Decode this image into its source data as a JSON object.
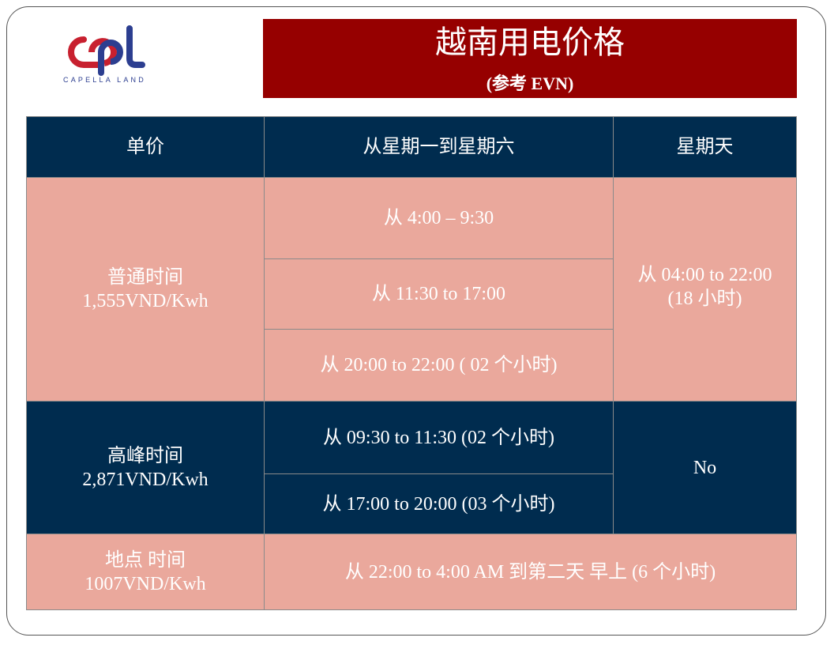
{
  "logo": {
    "text": "CAPELLA LAND",
    "colors": {
      "red": "#c8202f",
      "blue": "#2c3e90"
    }
  },
  "header": {
    "title": "越南用电价格",
    "subtitle": "(参考 EVN)",
    "background": "#960000"
  },
  "table": {
    "columns": [
      "单价",
      "从星期一到星期六",
      "星期天"
    ],
    "normal": {
      "label": "普通时间",
      "price": "1,555VND/Kwh",
      "weekday": [
        "从 4:00 – 9:30",
        "从 11:30 to 17:00",
        "从 20:00 to 22:00 ( 02 个小时)"
      ],
      "sunday": [
        "从 04:00 to 22:00",
        "(18 小时)"
      ]
    },
    "peak": {
      "label": "高峰时间",
      "price": "2,871VND/Kwh",
      "weekday": [
        "从  09:30 to 11:30 (02 个小时)",
        "从 17:00 to 20:00 (03 个小时)"
      ],
      "sunday": "No"
    },
    "offpeak": {
      "label": "地点 时间",
      "price": "1007VND/Kwh",
      "all": "从 22:00 to 4:00 AM 到第二天 早上 (6 个小时)"
    },
    "colors": {
      "navy": "#002c4f",
      "pink": "#eaa89c"
    }
  }
}
